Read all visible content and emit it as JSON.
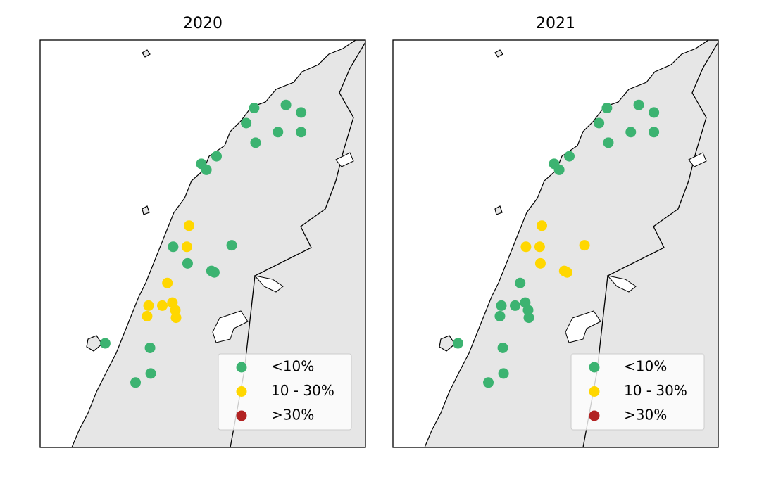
{
  "legend": {
    "labels": [
      "<10%",
      "10 - 30%",
      ">30%"
    ],
    "colors": [
      "#3cb371",
      "#ffd700",
      "#b22222"
    ]
  },
  "sites": {
    "lon": [
      13.96,
      14.4,
      14.61,
      13.85,
      14.29,
      14.61,
      13.98,
      13.44,
      13.23,
      13.3,
      13.06,
      12.84,
      13.03,
      13.65,
      13.04,
      13.37,
      13.41,
      12.76,
      12.5,
      12.69,
      12.83,
      12.87,
      12.48,
      12.88,
      11.9,
      12.52,
      12.53,
      12.32
    ],
    "lat": [
      67.15,
      67.17,
      67.12,
      67.05,
      66.99,
      66.99,
      66.92,
      66.83,
      66.78,
      66.74,
      66.37,
      66.23,
      66.23,
      66.24,
      66.12,
      66.07,
      66.06,
      65.99,
      65.84,
      65.84,
      65.86,
      65.81,
      65.77,
      65.76,
      65.59,
      65.56,
      65.39,
      65.33
    ]
  },
  "panels": [
    {
      "title": "2020",
      "classes": [
        0,
        0,
        0,
        0,
        0,
        0,
        0,
        0,
        0,
        0,
        1,
        0,
        1,
        0,
        0,
        0,
        0,
        1,
        1,
        1,
        1,
        1,
        1,
        1,
        0,
        0,
        0,
        0
      ]
    },
    {
      "title": "2021",
      "classes": [
        0,
        0,
        0,
        0,
        0,
        0,
        0,
        0,
        0,
        0,
        1,
        1,
        1,
        1,
        1,
        1,
        1,
        0,
        0,
        0,
        0,
        0,
        0,
        0,
        0,
        0,
        0,
        0
      ]
    }
  ]
}
